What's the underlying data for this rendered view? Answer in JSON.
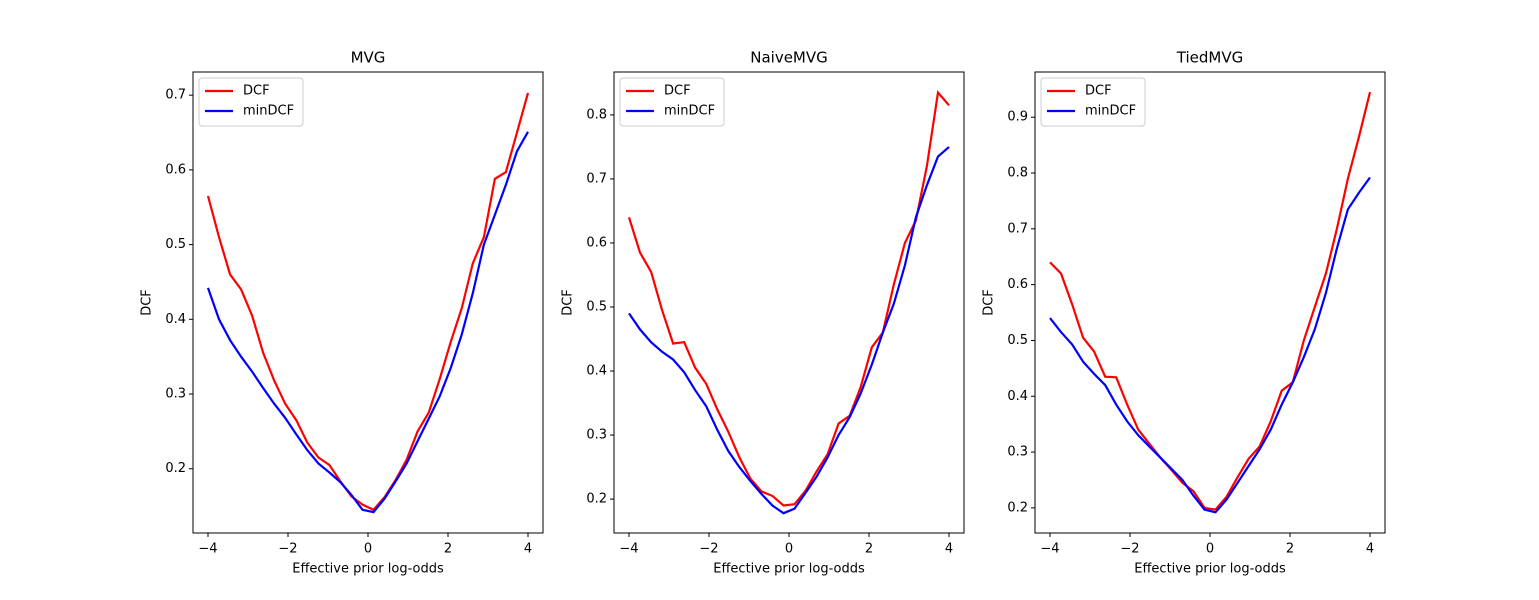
{
  "chart_data": [
    {
      "type": "line",
      "title": "MVG",
      "xlabel": "Effective prior log-odds",
      "ylabel": "DCF",
      "x": [
        -4,
        -3.724,
        -3.448,
        -3.172,
        -2.897,
        -2.621,
        -2.345,
        -2.069,
        -1.793,
        -1.517,
        -1.241,
        -0.966,
        -0.69,
        -0.414,
        -0.138,
        0.138,
        0.414,
        0.69,
        0.966,
        1.241,
        1.517,
        1.793,
        2.069,
        2.345,
        2.621,
        2.897,
        3.172,
        3.448,
        3.724,
        4
      ],
      "series": [
        {
          "name": "DCF",
          "color": "#ff0000",
          "values": [
            0.565,
            0.51,
            0.46,
            0.44,
            0.405,
            0.355,
            0.318,
            0.287,
            0.265,
            0.235,
            0.215,
            0.205,
            0.183,
            0.163,
            0.152,
            0.145,
            0.162,
            0.185,
            0.212,
            0.25,
            0.275,
            0.32,
            0.37,
            0.415,
            0.475,
            0.51,
            0.588,
            0.597,
            0.65,
            0.703
          ]
        },
        {
          "name": "minDCF",
          "color": "#0000ff",
          "values": [
            0.442,
            0.4,
            0.372,
            0.35,
            0.33,
            0.308,
            0.287,
            0.268,
            0.246,
            0.225,
            0.207,
            0.195,
            0.182,
            0.165,
            0.145,
            0.142,
            0.16,
            0.183,
            0.207,
            0.237,
            0.267,
            0.297,
            0.335,
            0.38,
            0.435,
            0.5,
            0.54,
            0.58,
            0.625,
            0.651
          ]
        }
      ],
      "xlim": [
        -4.375,
        4.375
      ],
      "ylim": [
        0.114,
        0.731
      ],
      "xticks": [
        {
          "value": -4,
          "label": "−4"
        },
        {
          "value": -2,
          "label": "−2"
        },
        0,
        2,
        4
      ],
      "yticks": [
        0.2,
        0.3,
        0.4,
        0.5,
        0.6,
        0.7
      ],
      "legend": "upper left"
    },
    {
      "type": "line",
      "title": "NaiveMVG",
      "xlabel": "Effective prior log-odds",
      "ylabel": "DCF",
      "x": [
        -4,
        -3.724,
        -3.448,
        -3.172,
        -2.897,
        -2.621,
        -2.345,
        -2.069,
        -1.793,
        -1.517,
        -1.241,
        -0.966,
        -0.69,
        -0.414,
        -0.138,
        0.138,
        0.414,
        0.69,
        0.966,
        1.241,
        1.517,
        1.793,
        2.069,
        2.345,
        2.621,
        2.897,
        3.172,
        3.448,
        3.724,
        4
      ],
      "series": [
        {
          "name": "DCF",
          "color": "#ff0000",
          "values": [
            0.64,
            0.585,
            0.555,
            0.495,
            0.443,
            0.445,
            0.405,
            0.38,
            0.34,
            0.305,
            0.265,
            0.232,
            0.212,
            0.205,
            0.19,
            0.192,
            0.213,
            0.243,
            0.27,
            0.318,
            0.33,
            0.375,
            0.437,
            0.46,
            0.535,
            0.6,
            0.635,
            0.72,
            0.835,
            0.815
          ]
        },
        {
          "name": "minDCF",
          "color": "#0000ff",
          "values": [
            0.49,
            0.465,
            0.445,
            0.43,
            0.418,
            0.398,
            0.37,
            0.345,
            0.308,
            0.275,
            0.25,
            0.228,
            0.208,
            0.19,
            0.178,
            0.185,
            0.21,
            0.235,
            0.265,
            0.3,
            0.328,
            0.365,
            0.41,
            0.46,
            0.505,
            0.565,
            0.64,
            0.69,
            0.735,
            0.75
          ]
        }
      ],
      "xlim": [
        -4.375,
        4.375
      ],
      "ylim": [
        0.147,
        0.867
      ],
      "xticks": [
        {
          "value": -4,
          "label": "−4"
        },
        {
          "value": -2,
          "label": "−2"
        },
        0,
        2,
        4
      ],
      "yticks": [
        0.2,
        0.3,
        0.4,
        0.5,
        0.6,
        0.7,
        0.8
      ],
      "legend": "upper left"
    },
    {
      "type": "line",
      "title": "TiedMVG",
      "xlabel": "Effective prior log-odds",
      "ylabel": "DCF",
      "x": [
        -4,
        -3.724,
        -3.448,
        -3.172,
        -2.897,
        -2.621,
        -2.345,
        -2.069,
        -1.793,
        -1.517,
        -1.241,
        -0.966,
        -0.69,
        -0.414,
        -0.138,
        0.138,
        0.414,
        0.69,
        0.966,
        1.241,
        1.517,
        1.793,
        2.069,
        2.345,
        2.621,
        2.897,
        3.172,
        3.448,
        3.724,
        4
      ],
      "series": [
        {
          "name": "DCF",
          "color": "#ff0000",
          "values": [
            0.64,
            0.62,
            0.565,
            0.505,
            0.48,
            0.435,
            0.434,
            0.385,
            0.34,
            0.315,
            0.29,
            0.268,
            0.245,
            0.23,
            0.2,
            0.197,
            0.22,
            0.255,
            0.288,
            0.31,
            0.355,
            0.41,
            0.425,
            0.5,
            0.56,
            0.62,
            0.7,
            0.79,
            0.865,
            0.945
          ]
        },
        {
          "name": "minDCF",
          "color": "#0000ff",
          "values": [
            0.54,
            0.515,
            0.493,
            0.462,
            0.44,
            0.42,
            0.385,
            0.355,
            0.33,
            0.31,
            0.29,
            0.27,
            0.25,
            0.222,
            0.197,
            0.192,
            0.215,
            0.245,
            0.275,
            0.305,
            0.34,
            0.385,
            0.425,
            0.47,
            0.52,
            0.585,
            0.665,
            0.735,
            0.765,
            0.792
          ]
        }
      ],
      "xlim": [
        -4.375,
        4.375
      ],
      "ylim": [
        0.155,
        0.981
      ],
      "xticks": [
        {
          "value": -4,
          "label": "−4"
        },
        {
          "value": -2,
          "label": "−2"
        },
        0,
        2,
        4
      ],
      "yticks": [
        0.2,
        0.3,
        0.4,
        0.5,
        0.6,
        0.7,
        0.8,
        0.9
      ],
      "legend": "upper left"
    }
  ]
}
